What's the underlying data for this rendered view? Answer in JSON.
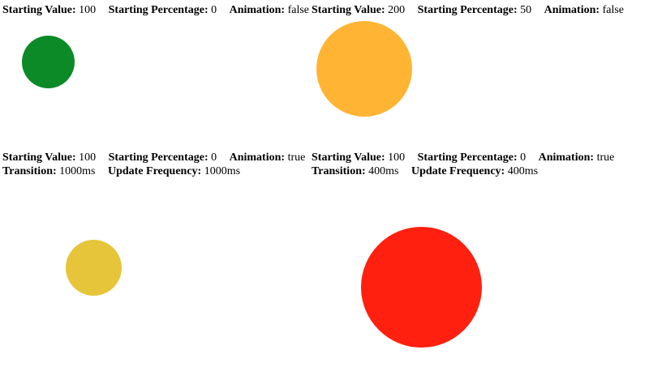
{
  "labels": {
    "starting_value": "Starting Value:",
    "starting_percentage": "Starting Percentage:",
    "animation": "Animation:",
    "transition": "Transition:",
    "update_frequency": "Update Frequency:"
  },
  "panels": [
    {
      "starting_value": "100",
      "starting_percentage": "0",
      "animation": "false",
      "circle_color": "#0b8a27"
    },
    {
      "starting_value": "200",
      "starting_percentage": "50",
      "animation": "false",
      "circle_color": "#ffb533"
    },
    {
      "starting_value": "100",
      "starting_percentage": "0",
      "animation": "true",
      "transition": "1000ms",
      "update_frequency": "1000ms",
      "circle_color": "#e6c53a"
    },
    {
      "starting_value": "100",
      "starting_percentage": "0",
      "animation": "true",
      "transition": "400ms",
      "update_frequency": "400ms",
      "circle_color": "#ff2010"
    }
  ]
}
